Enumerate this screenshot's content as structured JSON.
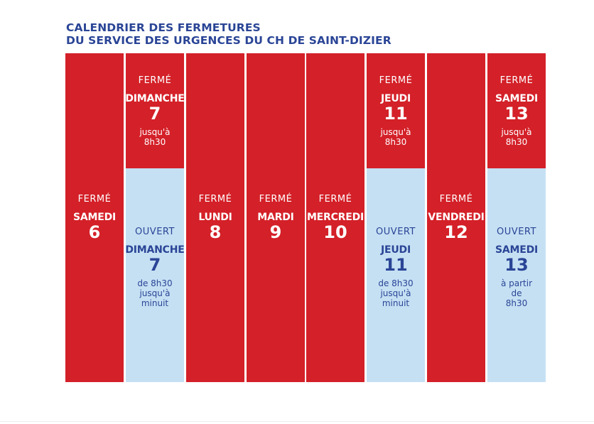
{
  "title": {
    "line1": "CALENDRIER DES FERMETURES",
    "line2": "DU SERVICE DES URGENCES DU CH DE SAINT-DIZIER"
  },
  "colors": {
    "closed": "#d42028",
    "open": "#c5e0f3",
    "title": "#2a4596"
  },
  "columns": [
    {
      "cells": [
        {
          "state": "closed",
          "status": "FERMÉ",
          "day": "SAMEDI",
          "num": "6",
          "note": []
        }
      ]
    },
    {
      "cells": [
        {
          "state": "closed",
          "status": "FERMÉ",
          "day": "DIMANCHE",
          "num": "7",
          "note": [
            "jusqu'à",
            "8h30"
          ]
        },
        {
          "state": "open",
          "status": "OUVERT",
          "day": "DIMANCHE",
          "num": "7",
          "note": [
            "de 8h30",
            "jusqu'à",
            "minuit"
          ]
        }
      ]
    },
    {
      "cells": [
        {
          "state": "closed",
          "status": "FERMÉ",
          "day": "LUNDI",
          "num": "8",
          "note": []
        }
      ]
    },
    {
      "cells": [
        {
          "state": "closed",
          "status": "FERMÉ",
          "day": "MARDI",
          "num": "9",
          "note": []
        }
      ]
    },
    {
      "cells": [
        {
          "state": "closed",
          "status": "FERMÉ",
          "day": "MERCREDI",
          "num": "10",
          "note": []
        }
      ]
    },
    {
      "cells": [
        {
          "state": "closed",
          "status": "FERMÉ",
          "day": "JEUDI",
          "num": "11",
          "note": [
            "jusqu'à",
            "8h30"
          ]
        },
        {
          "state": "open",
          "status": "OUVERT",
          "day": "JEUDI",
          "num": "11",
          "note": [
            "de 8h30",
            "jusqu'à",
            "minuit"
          ]
        }
      ]
    },
    {
      "cells": [
        {
          "state": "closed",
          "status": "FERMÉ",
          "day": "VENDREDI",
          "num": "12",
          "note": []
        }
      ]
    },
    {
      "cells": [
        {
          "state": "closed",
          "status": "FERMÉ",
          "day": "SAMEDI",
          "num": "13",
          "note": [
            "jusqu'à",
            "8h30"
          ]
        },
        {
          "state": "open",
          "status": "OUVERT",
          "day": "SAMEDI",
          "num": "13",
          "note": [
            "à partir",
            "de",
            "8h30"
          ]
        }
      ]
    }
  ]
}
